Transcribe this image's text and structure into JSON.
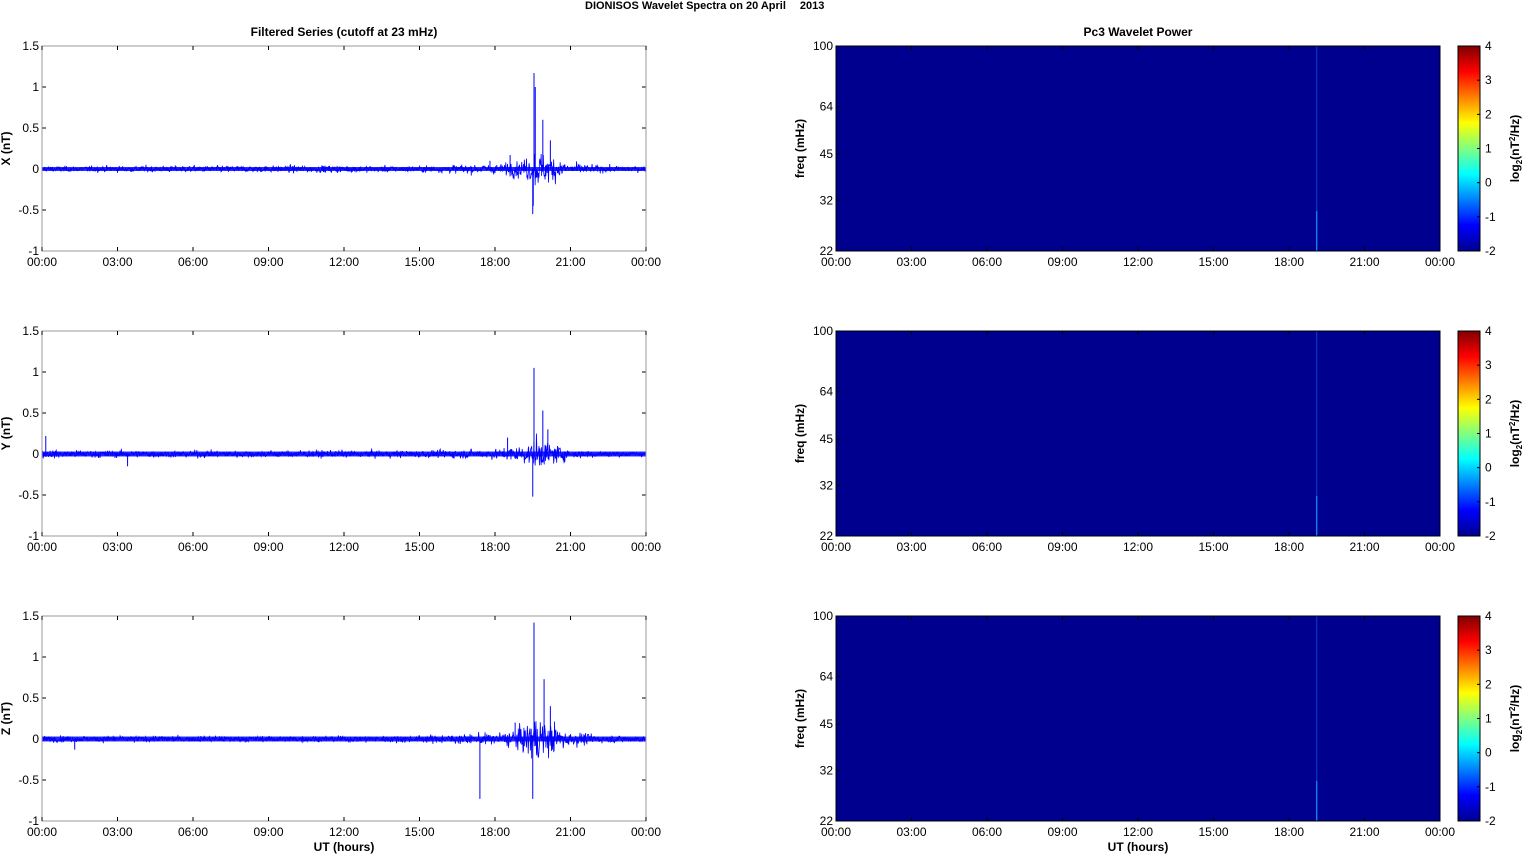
{
  "figure": {
    "title_prefix": "DIONISOS Wavelet Spectra on 20 April",
    "title_year": "2013"
  },
  "colors": {
    "trace": "#0000ff",
    "background": "#00008f",
    "spike": "#0a64ff",
    "axis": "#000000",
    "colormap": [
      "#00008f",
      "#0000ff",
      "#0080ff",
      "#00ffff",
      "#80ff80",
      "#ffff00",
      "#ff8000",
      "#ff0000",
      "#800000"
    ]
  },
  "chart_data": [
    {
      "type": "line",
      "title": "Filtered Series (cutoff at 23 mHz)",
      "ylabel": "X (nT)",
      "xlabel": "",
      "xlim": [
        0,
        24
      ],
      "ylim": [
        -1,
        1.5
      ],
      "xticks": [
        "00:00",
        "03:00",
        "06:00",
        "09:00",
        "12:00",
        "15:00",
        "18:00",
        "21:00",
        "00:00"
      ],
      "yticks": [
        "1.5",
        "1",
        "0.5",
        "0",
        "-0.5",
        "-1"
      ],
      "series": [
        {
          "baseline_amplitude": 0.04,
          "envelope": [
            [
              0,
              0.05
            ],
            [
              3,
              0.06
            ],
            [
              11,
              0.07
            ],
            [
              15,
              0.06
            ],
            [
              18.3,
              0.1
            ],
            [
              19.3,
              0.22
            ],
            [
              19.6,
              0.35
            ],
            [
              20.3,
              0.25
            ],
            [
              21,
              0.12
            ],
            [
              22,
              0.07
            ],
            [
              24,
              0.05
            ]
          ],
          "spikes": [
            [
              19.55,
              1.17
            ],
            [
              19.6,
              1.0
            ],
            [
              19.5,
              -0.55
            ],
            [
              19.52,
              -0.45
            ],
            [
              19.9,
              0.6
            ],
            [
              20.2,
              0.35
            ],
            [
              18.6,
              0.17
            ],
            [
              17.8,
              0.1
            ]
          ]
        }
      ]
    },
    {
      "type": "heatmap",
      "title": "Pc3 Wavelet Power",
      "ylabel": "freq (mHz)",
      "xlabel": "",
      "xlim": [
        0,
        24
      ],
      "ylim": [
        22,
        100
      ],
      "xticks": [
        "00:00",
        "03:00",
        "06:00",
        "09:00",
        "12:00",
        "15:00",
        "18:00",
        "21:00",
        "00:00"
      ],
      "yticks": [
        "100",
        "64",
        "45",
        "32",
        "22"
      ],
      "colorbar": {
        "label_base": "log",
        "label_sub": "2",
        "label_rest": "(nT",
        "label_sup": "2",
        "label_end": "/Hz)",
        "ticks": [
          "4",
          "3",
          "2",
          "1",
          "0",
          "-1",
          "-2"
        ],
        "range": [
          -2,
          4
        ]
      },
      "values": "uniform -2 (background) with faint streak near 19:05 UT"
    },
    {
      "type": "line",
      "ylabel": "Y (nT)",
      "xlabel": "",
      "xlim": [
        0,
        24
      ],
      "ylim": [
        -1,
        1.5
      ],
      "xticks": [
        "00:00",
        "03:00",
        "06:00",
        "09:00",
        "12:00",
        "15:00",
        "18:00",
        "21:00",
        "00:00"
      ],
      "yticks": [
        "1.5",
        "1",
        "0.5",
        "0",
        "-0.5",
        "-1"
      ],
      "series": [
        {
          "baseline_amplitude": 0.05,
          "envelope": [
            [
              0,
              0.08
            ],
            [
              3,
              0.07
            ],
            [
              11,
              0.07
            ],
            [
              15,
              0.07
            ],
            [
              18.3,
              0.1
            ],
            [
              19.3,
              0.2
            ],
            [
              19.6,
              0.3
            ],
            [
              20.3,
              0.2
            ],
            [
              21,
              0.1
            ],
            [
              22,
              0.06
            ],
            [
              24,
              0.05
            ]
          ],
          "spikes": [
            [
              19.55,
              1.05
            ],
            [
              19.5,
              -0.52
            ],
            [
              19.9,
              0.53
            ],
            [
              20.1,
              0.3
            ],
            [
              0.15,
              0.22
            ],
            [
              3.4,
              -0.15
            ],
            [
              18.5,
              0.2
            ]
          ]
        }
      ]
    },
    {
      "type": "heatmap",
      "title": "",
      "ylabel": "freq (mHz)",
      "xlabel": "",
      "xlim": [
        0,
        24
      ],
      "ylim": [
        22,
        100
      ],
      "xticks": [
        "00:00",
        "03:00",
        "06:00",
        "09:00",
        "12:00",
        "15:00",
        "18:00",
        "21:00",
        "00:00"
      ],
      "yticks": [
        "100",
        "64",
        "45",
        "32",
        "22"
      ],
      "colorbar": {
        "ticks": [
          "4",
          "3",
          "2",
          "1",
          "0",
          "-1",
          "-2"
        ],
        "range": [
          -2,
          4
        ]
      },
      "values": "uniform -2 (background) with faint streak near 19:05 UT"
    },
    {
      "type": "line",
      "ylabel": "Z (nT)",
      "xlabel": "UT (hours)",
      "xlim": [
        0,
        24
      ],
      "ylim": [
        -1,
        1.5
      ],
      "xticks": [
        "00:00",
        "03:00",
        "06:00",
        "09:00",
        "12:00",
        "15:00",
        "18:00",
        "21:00",
        "00:00"
      ],
      "yticks": [
        "1.5",
        "1",
        "0.5",
        "0",
        "-0.5",
        "-1"
      ],
      "series": [
        {
          "baseline_amplitude": 0.05,
          "envelope": [
            [
              0,
              0.06
            ],
            [
              3,
              0.06
            ],
            [
              11,
              0.06
            ],
            [
              15,
              0.07
            ],
            [
              18.3,
              0.12
            ],
            [
              19.3,
              0.3
            ],
            [
              19.6,
              0.45
            ],
            [
              20.3,
              0.3
            ],
            [
              21,
              0.15
            ],
            [
              22,
              0.08
            ],
            [
              24,
              0.06
            ]
          ],
          "spikes": [
            [
              19.55,
              1.42
            ],
            [
              19.5,
              -0.73
            ],
            [
              17.4,
              -0.73
            ],
            [
              19.95,
              0.73
            ],
            [
              20.2,
              0.4
            ],
            [
              18.8,
              0.2
            ],
            [
              1.3,
              -0.13
            ]
          ]
        }
      ]
    },
    {
      "type": "heatmap",
      "title": "",
      "ylabel": "freq (mHz)",
      "xlabel": "UT (hours)",
      "xlim": [
        0,
        24
      ],
      "ylim": [
        22,
        100
      ],
      "xticks": [
        "00:00",
        "03:00",
        "06:00",
        "09:00",
        "12:00",
        "15:00",
        "18:00",
        "21:00",
        "00:00"
      ],
      "yticks": [
        "100",
        "64",
        "45",
        "32",
        "22"
      ],
      "colorbar": {
        "ticks": [
          "4",
          "3",
          "2",
          "1",
          "0",
          "-1",
          "-2"
        ],
        "range": [
          -2,
          4
        ]
      },
      "values": "uniform -2 (background) with faint streak near 19:05 UT"
    }
  ]
}
